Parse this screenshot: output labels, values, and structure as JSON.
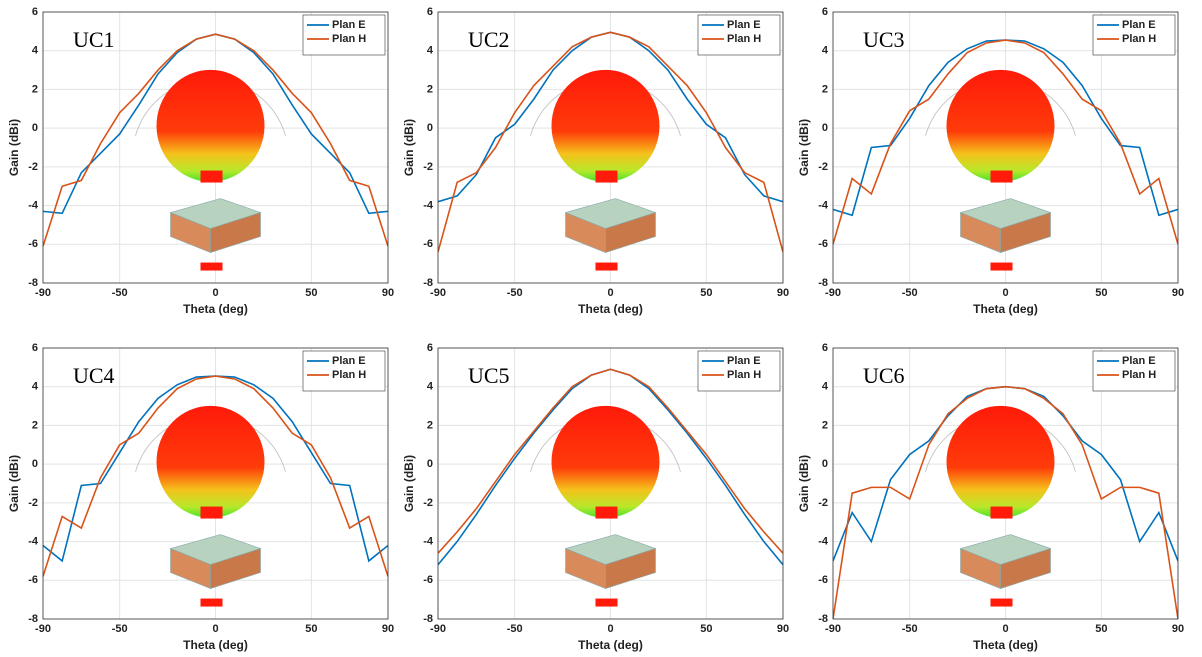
{
  "chart_data": [
    {
      "type": "line",
      "annotation": "UC1",
      "xlabel": "Theta (deg)",
      "ylabel": "Gain (dBi)",
      "grid": true,
      "legend": "upper-right",
      "xlim": [
        -90,
        90
      ],
      "ylim": [
        -8,
        6
      ],
      "xticks": [
        -90,
        -50,
        0,
        50,
        90
      ],
      "yticks": [
        -8,
        -6,
        -4,
        -2,
        0,
        2,
        4,
        6
      ],
      "x": [
        -90,
        -80,
        -70,
        -60,
        -50,
        -40,
        -30,
        -20,
        -10,
        0,
        10,
        20,
        30,
        40,
        50,
        60,
        70,
        80,
        90
      ],
      "series": [
        {
          "name": "Plan E",
          "color": "#0072bd",
          "values": [
            -4.3,
            -4.4,
            -2.3,
            -1.3,
            -0.3,
            1.2,
            2.8,
            3.9,
            4.6,
            4.85,
            4.6,
            3.9,
            2.8,
            1.2,
            -0.3,
            -1.3,
            -2.3,
            -4.4,
            -4.3
          ]
        },
        {
          "name": "Plan H",
          "color": "#d95319",
          "values": [
            -6.1,
            -3.0,
            -2.7,
            -0.8,
            0.8,
            1.8,
            3.0,
            4.0,
            4.6,
            4.85,
            4.6,
            4.0,
            3.0,
            1.8,
            0.8,
            -0.8,
            -2.7,
            -3.0,
            -6.1
          ]
        }
      ]
    },
    {
      "type": "line",
      "annotation": "UC2",
      "xlabel": "Theta (deg)",
      "ylabel": "Gain (dBi)",
      "grid": true,
      "legend": "upper-right",
      "xlim": [
        -90,
        90
      ],
      "ylim": [
        -8,
        6
      ],
      "xticks": [
        -90,
        -50,
        0,
        50,
        90
      ],
      "yticks": [
        -8,
        -6,
        -4,
        -2,
        0,
        2,
        4,
        6
      ],
      "x": [
        -90,
        -80,
        -70,
        -60,
        -50,
        -40,
        -30,
        -20,
        -10,
        0,
        10,
        20,
        30,
        40,
        50,
        60,
        70,
        80,
        90
      ],
      "series": [
        {
          "name": "Plan E",
          "color": "#0072bd",
          "values": [
            -3.8,
            -3.5,
            -2.4,
            -0.5,
            0.2,
            1.5,
            3.0,
            4.0,
            4.7,
            4.95,
            4.7,
            4.0,
            3.0,
            1.5,
            0.2,
            -0.5,
            -2.4,
            -3.5,
            -3.8
          ]
        },
        {
          "name": "Plan H",
          "color": "#d95319",
          "values": [
            -6.4,
            -2.8,
            -2.3,
            -1.0,
            0.8,
            2.2,
            3.2,
            4.2,
            4.7,
            4.95,
            4.7,
            4.2,
            3.2,
            2.2,
            0.8,
            -1.0,
            -2.3,
            -2.8,
            -6.4
          ]
        }
      ]
    },
    {
      "type": "line",
      "annotation": "UC3",
      "xlabel": "Theta (deg)",
      "ylabel": "Gain (dBi)",
      "grid": true,
      "legend": "upper-right",
      "xlim": [
        -90,
        90
      ],
      "ylim": [
        -8,
        6
      ],
      "xticks": [
        -90,
        -50,
        0,
        50,
        90
      ],
      "yticks": [
        -8,
        -6,
        -4,
        -2,
        0,
        2,
        4,
        6
      ],
      "x": [
        -90,
        -80,
        -70,
        -60,
        -50,
        -40,
        -30,
        -20,
        -10,
        0,
        10,
        20,
        30,
        40,
        50,
        60,
        70,
        80,
        90
      ],
      "series": [
        {
          "name": "Plan E",
          "color": "#0072bd",
          "values": [
            -4.2,
            -4.5,
            -1.0,
            -0.9,
            0.5,
            2.2,
            3.4,
            4.1,
            4.5,
            4.55,
            4.5,
            4.1,
            3.4,
            2.2,
            0.5,
            -0.9,
            -1.0,
            -4.5,
            -4.2
          ]
        },
        {
          "name": "Plan H",
          "color": "#d95319",
          "values": [
            -6.0,
            -2.6,
            -3.4,
            -0.8,
            0.9,
            1.5,
            2.8,
            3.9,
            4.4,
            4.55,
            4.4,
            3.9,
            2.8,
            1.5,
            0.9,
            -0.8,
            -3.4,
            -2.6,
            -6.0
          ]
        }
      ]
    },
    {
      "type": "line",
      "annotation": "UC4",
      "xlabel": "Theta (deg)",
      "ylabel": "Gain (dBi)",
      "grid": true,
      "legend": "upper-right",
      "xlim": [
        -90,
        90
      ],
      "ylim": [
        -8,
        6
      ],
      "xticks": [
        -90,
        -50,
        0,
        50,
        90
      ],
      "yticks": [
        -8,
        -6,
        -4,
        -2,
        0,
        2,
        4,
        6
      ],
      "x": [
        -90,
        -80,
        -70,
        -60,
        -50,
        -40,
        -30,
        -20,
        -10,
        0,
        10,
        20,
        30,
        40,
        50,
        60,
        70,
        80,
        90
      ],
      "series": [
        {
          "name": "Plan E",
          "color": "#0072bd",
          "values": [
            -4.2,
            -5.0,
            -1.1,
            -1.0,
            0.6,
            2.2,
            3.4,
            4.1,
            4.5,
            4.55,
            4.5,
            4.1,
            3.4,
            2.2,
            0.6,
            -1.0,
            -1.1,
            -5.0,
            -4.2
          ]
        },
        {
          "name": "Plan H",
          "color": "#d95319",
          "values": [
            -5.8,
            -2.7,
            -3.3,
            -0.7,
            1.0,
            1.6,
            2.9,
            3.9,
            4.4,
            4.55,
            4.4,
            3.9,
            2.9,
            1.6,
            1.0,
            -0.7,
            -3.3,
            -2.7,
            -5.8
          ]
        }
      ]
    },
    {
      "type": "line",
      "annotation": "UC5",
      "xlabel": "Theta (deg)",
      "ylabel": "Gain (dBi)",
      "grid": true,
      "legend": "upper-right",
      "xlim": [
        -90,
        90
      ],
      "ylim": [
        -8,
        6
      ],
      "xticks": [
        -90,
        -50,
        0,
        50,
        90
      ],
      "yticks": [
        -8,
        -6,
        -4,
        -2,
        0,
        2,
        4,
        6
      ],
      "x": [
        -90,
        -80,
        -70,
        -60,
        -50,
        -40,
        -30,
        -20,
        -10,
        0,
        10,
        20,
        30,
        40,
        50,
        60,
        70,
        80,
        90
      ],
      "series": [
        {
          "name": "Plan E",
          "color": "#0072bd",
          "values": [
            -5.2,
            -4.0,
            -2.6,
            -1.1,
            0.3,
            1.6,
            2.8,
            3.9,
            4.6,
            4.9,
            4.6,
            3.9,
            2.8,
            1.6,
            0.3,
            -1.1,
            -2.6,
            -4.0,
            -5.2
          ]
        },
        {
          "name": "Plan H",
          "color": "#d95319",
          "values": [
            -4.6,
            -3.5,
            -2.3,
            -0.9,
            0.5,
            1.7,
            2.9,
            4.0,
            4.6,
            4.9,
            4.6,
            4.0,
            2.9,
            1.7,
            0.5,
            -0.9,
            -2.3,
            -3.5,
            -4.6
          ]
        }
      ]
    },
    {
      "type": "line",
      "annotation": "UC6",
      "xlabel": "Theta (deg)",
      "ylabel": "Gain (dBi)",
      "grid": true,
      "legend": "upper-right",
      "xlim": [
        -90,
        90
      ],
      "ylim": [
        -8,
        6
      ],
      "xticks": [
        -90,
        -50,
        0,
        50,
        90
      ],
      "yticks": [
        -8,
        -6,
        -4,
        -2,
        0,
        2,
        4,
        6
      ],
      "x": [
        -90,
        -80,
        -70,
        -60,
        -50,
        -40,
        -30,
        -20,
        -10,
        0,
        10,
        20,
        30,
        40,
        50,
        60,
        70,
        80,
        90
      ],
      "series": [
        {
          "name": "Plan E",
          "color": "#0072bd",
          "values": [
            -5.0,
            -2.5,
            -4.0,
            -0.8,
            0.5,
            1.2,
            2.5,
            3.5,
            3.9,
            4.0,
            3.9,
            3.5,
            2.5,
            1.2,
            0.5,
            -0.8,
            -4.0,
            -2.5,
            -5.0
          ]
        },
        {
          "name": "Plan H",
          "color": "#d95319",
          "values": [
            -8.0,
            -1.5,
            -1.2,
            -1.2,
            -1.8,
            1.0,
            2.6,
            3.4,
            3.9,
            4.0,
            3.9,
            3.4,
            2.6,
            1.0,
            -1.8,
            -1.2,
            -1.2,
            -1.5,
            -8.0
          ]
        }
      ]
    }
  ]
}
